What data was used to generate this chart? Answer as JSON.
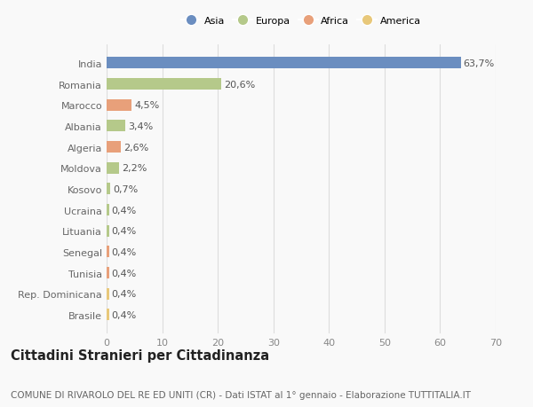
{
  "categories": [
    "India",
    "Romania",
    "Marocco",
    "Albania",
    "Algeria",
    "Moldova",
    "Kosovo",
    "Ucraina",
    "Lituania",
    "Senegal",
    "Tunisia",
    "Rep. Dominicana",
    "Brasile"
  ],
  "values": [
    63.7,
    20.6,
    4.5,
    3.4,
    2.6,
    2.2,
    0.7,
    0.4,
    0.4,
    0.4,
    0.4,
    0.4,
    0.4
  ],
  "labels": [
    "63,7%",
    "20,6%",
    "4,5%",
    "3,4%",
    "2,6%",
    "2,2%",
    "0,7%",
    "0,4%",
    "0,4%",
    "0,4%",
    "0,4%",
    "0,4%",
    "0,4%"
  ],
  "colors": [
    "#6b8ec0",
    "#b5c98a",
    "#e8a07a",
    "#b5c98a",
    "#e8a07a",
    "#b5c98a",
    "#b5c98a",
    "#b5c98a",
    "#b5c98a",
    "#e8a07a",
    "#e8a07a",
    "#e8c87a",
    "#e8c87a"
  ],
  "legend_labels": [
    "Asia",
    "Europa",
    "Africa",
    "America"
  ],
  "legend_colors": [
    "#6b8ec0",
    "#b5c98a",
    "#e8a07a",
    "#e8c87a"
  ],
  "xlim": [
    0,
    70
  ],
  "xticks": [
    0,
    10,
    20,
    30,
    40,
    50,
    60,
    70
  ],
  "title": "Cittadini Stranieri per Cittadinanza",
  "subtitle": "COMUNE DI RIVAROLO DEL RE ED UNITI (CR) - Dati ISTAT al 1° gennaio - Elaborazione TUTTITALIA.IT",
  "bg_color": "#f9f9f9",
  "grid_color": "#dddddd",
  "bar_height": 0.55,
  "label_fontsize": 8.0,
  "tick_fontsize": 8.0,
  "title_fontsize": 10.5,
  "subtitle_fontsize": 7.5
}
